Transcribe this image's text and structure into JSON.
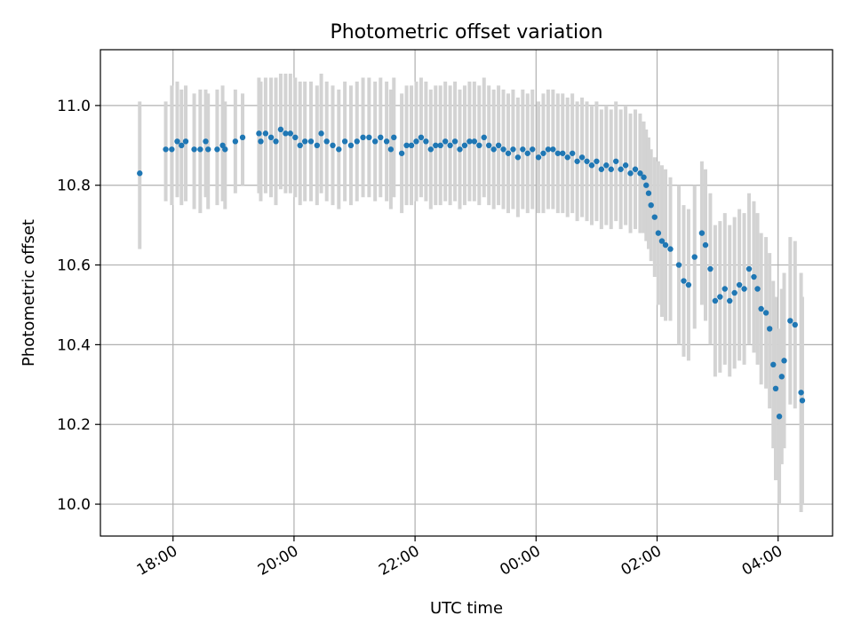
{
  "chart_data": {
    "type": "scatter",
    "title": "Photometric offset variation",
    "xlabel": "UTC time",
    "ylabel": "Photometric offset",
    "grid": true,
    "x_unit": "hours since 00:00 UTC (negative = previous day)",
    "xlim": [
      -7.2,
      4.9
    ],
    "ylim": [
      9.92,
      11.14
    ],
    "x_ticks": [
      {
        "value": -6,
        "label": "18:00"
      },
      {
        "value": -4,
        "label": "20:00"
      },
      {
        "value": -2,
        "label": "22:00"
      },
      {
        "value": 0,
        "label": "00:00"
      },
      {
        "value": 2,
        "label": "02:00"
      },
      {
        "value": 4,
        "label": "04:00"
      }
    ],
    "y_ticks": [
      {
        "value": 10.0,
        "label": "10.0"
      },
      {
        "value": 10.2,
        "label": "10.2"
      },
      {
        "value": 10.4,
        "label": "10.4"
      },
      {
        "value": 10.6,
        "label": "10.6"
      },
      {
        "value": 10.8,
        "label": "10.8"
      },
      {
        "value": 11.0,
        "label": "11.0"
      }
    ],
    "series": [
      {
        "name": "offset",
        "color": "#1f77b4",
        "errorbar_color": "#d3d3d3",
        "points": [
          [
            -6.55,
            10.83,
            10.64,
            11.01
          ],
          [
            -6.12,
            10.89,
            10.76,
            11.01
          ],
          [
            -6.02,
            10.89,
            10.75,
            11.05
          ],
          [
            -5.93,
            10.91,
            10.77,
            11.06
          ],
          [
            -5.86,
            10.9,
            10.75,
            11.04
          ],
          [
            -5.79,
            10.91,
            10.76,
            11.05
          ],
          [
            -5.65,
            10.89,
            10.74,
            11.03
          ],
          [
            -5.55,
            10.89,
            10.73,
            11.04
          ],
          [
            -5.46,
            10.91,
            10.77,
            11.04
          ],
          [
            -5.42,
            10.89,
            10.74,
            11.03
          ],
          [
            -5.27,
            10.89,
            10.75,
            11.04
          ],
          [
            -5.18,
            10.9,
            10.76,
            11.05
          ],
          [
            -5.14,
            10.89,
            10.74,
            11.01
          ],
          [
            -4.97,
            10.91,
            10.78,
            11.04
          ],
          [
            -4.85,
            10.92,
            10.8,
            11.03
          ],
          [
            -4.58,
            10.93,
            10.78,
            11.07
          ],
          [
            -4.55,
            10.91,
            10.76,
            11.06
          ],
          [
            -4.47,
            10.93,
            10.78,
            11.07
          ],
          [
            -4.38,
            10.92,
            10.77,
            11.07
          ],
          [
            -4.3,
            10.91,
            10.75,
            11.07
          ],
          [
            -4.22,
            10.94,
            10.79,
            11.08
          ],
          [
            -4.14,
            10.93,
            10.78,
            11.08
          ],
          [
            -4.06,
            10.93,
            10.78,
            11.08
          ],
          [
            -3.98,
            10.92,
            10.77,
            11.07
          ],
          [
            -3.9,
            10.9,
            10.75,
            11.06
          ],
          [
            -3.82,
            10.91,
            10.76,
            11.06
          ],
          [
            -3.72,
            10.91,
            10.76,
            11.06
          ],
          [
            -3.62,
            10.9,
            10.75,
            11.05
          ],
          [
            -3.55,
            10.93,
            10.78,
            11.08
          ],
          [
            -3.46,
            10.91,
            10.76,
            11.06
          ],
          [
            -3.36,
            10.9,
            10.75,
            11.05
          ],
          [
            -3.26,
            10.89,
            10.74,
            11.04
          ],
          [
            -3.16,
            10.91,
            10.76,
            11.06
          ],
          [
            -3.06,
            10.9,
            10.75,
            11.05
          ],
          [
            -2.96,
            10.91,
            10.76,
            11.06
          ],
          [
            -2.86,
            10.92,
            10.77,
            11.07
          ],
          [
            -2.76,
            10.92,
            10.77,
            11.07
          ],
          [
            -2.66,
            10.91,
            10.76,
            11.06
          ],
          [
            -2.57,
            10.92,
            10.77,
            11.07
          ],
          [
            -2.47,
            10.91,
            10.76,
            11.06
          ],
          [
            -2.4,
            10.89,
            10.74,
            11.04
          ],
          [
            -2.35,
            10.92,
            10.77,
            11.07
          ],
          [
            -2.22,
            10.88,
            10.73,
            11.03
          ],
          [
            -2.14,
            10.9,
            10.75,
            11.05
          ],
          [
            -2.06,
            10.9,
            10.75,
            11.05
          ],
          [
            -1.98,
            10.91,
            10.76,
            11.06
          ],
          [
            -1.9,
            10.92,
            10.77,
            11.07
          ],
          [
            -1.82,
            10.91,
            10.76,
            11.06
          ],
          [
            -1.74,
            10.89,
            10.74,
            11.04
          ],
          [
            -1.66,
            10.9,
            10.75,
            11.05
          ],
          [
            -1.58,
            10.9,
            10.75,
            11.05
          ],
          [
            -1.5,
            10.91,
            10.76,
            11.06
          ],
          [
            -1.42,
            10.9,
            10.75,
            11.05
          ],
          [
            -1.34,
            10.91,
            10.76,
            11.06
          ],
          [
            -1.26,
            10.89,
            10.74,
            11.04
          ],
          [
            -1.18,
            10.9,
            10.75,
            11.05
          ],
          [
            -1.1,
            10.91,
            10.76,
            11.06
          ],
          [
            -1.02,
            10.91,
            10.76,
            11.06
          ],
          [
            -0.94,
            10.9,
            10.75,
            11.05
          ],
          [
            -0.86,
            10.92,
            10.77,
            11.07
          ],
          [
            -0.78,
            10.9,
            10.75,
            11.05
          ],
          [
            -0.7,
            10.89,
            10.74,
            11.04
          ],
          [
            -0.62,
            10.9,
            10.75,
            11.05
          ],
          [
            -0.54,
            10.89,
            10.74,
            11.04
          ],
          [
            -0.46,
            10.88,
            10.73,
            11.03
          ],
          [
            -0.38,
            10.89,
            10.74,
            11.04
          ],
          [
            -0.3,
            10.87,
            10.72,
            11.02
          ],
          [
            -0.22,
            10.89,
            10.74,
            11.04
          ],
          [
            -0.14,
            10.88,
            10.73,
            11.03
          ],
          [
            -0.06,
            10.89,
            10.74,
            11.04
          ],
          [
            0.04,
            10.87,
            10.73,
            11.01
          ],
          [
            0.12,
            10.88,
            10.73,
            11.03
          ],
          [
            0.2,
            10.89,
            10.74,
            11.04
          ],
          [
            0.28,
            10.89,
            10.74,
            11.04
          ],
          [
            0.36,
            10.88,
            10.73,
            11.03
          ],
          [
            0.44,
            10.88,
            10.73,
            11.03
          ],
          [
            0.52,
            10.87,
            10.72,
            11.02
          ],
          [
            0.6,
            10.88,
            10.73,
            11.03
          ],
          [
            0.68,
            10.86,
            10.71,
            11.01
          ],
          [
            0.76,
            10.87,
            10.72,
            11.02
          ],
          [
            0.84,
            10.86,
            10.71,
            11.01
          ],
          [
            0.92,
            10.85,
            10.7,
            11.0
          ],
          [
            1.0,
            10.86,
            10.71,
            11.01
          ],
          [
            1.08,
            10.84,
            10.69,
            10.99
          ],
          [
            1.16,
            10.85,
            10.7,
            11.0
          ],
          [
            1.24,
            10.84,
            10.69,
            10.99
          ],
          [
            1.32,
            10.86,
            10.71,
            11.01
          ],
          [
            1.4,
            10.84,
            10.69,
            10.99
          ],
          [
            1.48,
            10.85,
            10.7,
            11.0
          ],
          [
            1.56,
            10.83,
            10.68,
            10.98
          ],
          [
            1.64,
            10.84,
            10.69,
            10.99
          ],
          [
            1.72,
            10.83,
            10.68,
            10.98
          ],
          [
            1.78,
            10.82,
            10.68,
            10.96
          ],
          [
            1.82,
            10.8,
            10.66,
            10.94
          ],
          [
            1.86,
            10.78,
            10.64,
            10.92
          ],
          [
            1.9,
            10.75,
            10.61,
            10.89
          ],
          [
            1.96,
            10.72,
            10.57,
            10.87
          ],
          [
            2.02,
            10.68,
            10.5,
            10.86
          ],
          [
            2.08,
            10.66,
            10.47,
            10.85
          ],
          [
            2.14,
            10.65,
            10.46,
            10.84
          ],
          [
            2.22,
            10.64,
            10.46,
            10.82
          ],
          [
            2.36,
            10.6,
            10.4,
            10.8
          ],
          [
            2.44,
            10.56,
            10.37,
            10.75
          ],
          [
            2.52,
            10.55,
            10.36,
            10.74
          ],
          [
            2.62,
            10.62,
            10.44,
            10.8
          ],
          [
            2.74,
            10.68,
            10.5,
            10.86
          ],
          [
            2.8,
            10.65,
            10.46,
            10.84
          ],
          [
            2.88,
            10.59,
            10.4,
            10.78
          ],
          [
            2.96,
            10.51,
            10.32,
            10.7
          ],
          [
            3.04,
            10.52,
            10.33,
            10.71
          ],
          [
            3.12,
            10.54,
            10.35,
            10.73
          ],
          [
            3.2,
            10.51,
            10.32,
            10.7
          ],
          [
            3.28,
            10.53,
            10.34,
            10.72
          ],
          [
            3.36,
            10.55,
            10.36,
            10.74
          ],
          [
            3.44,
            10.54,
            10.35,
            10.73
          ],
          [
            3.52,
            10.59,
            10.4,
            10.78
          ],
          [
            3.6,
            10.57,
            10.38,
            10.76
          ],
          [
            3.66,
            10.54,
            10.35,
            10.73
          ],
          [
            3.72,
            10.49,
            10.3,
            10.68
          ],
          [
            3.8,
            10.48,
            10.29,
            10.67
          ],
          [
            3.86,
            10.44,
            10.24,
            10.63
          ],
          [
            3.92,
            10.35,
            10.14,
            10.56
          ],
          [
            3.96,
            10.29,
            10.06,
            10.52
          ],
          [
            4.02,
            10.22,
            10.0,
            10.44
          ],
          [
            4.06,
            10.32,
            10.1,
            10.54
          ],
          [
            4.1,
            10.36,
            10.14,
            10.58
          ],
          [
            4.2,
            10.46,
            10.25,
            10.67
          ],
          [
            4.28,
            10.45,
            10.24,
            10.66
          ],
          [
            4.38,
            10.28,
            9.98,
            10.58
          ],
          [
            4.4,
            10.26,
            10.0,
            10.52
          ]
        ]
      }
    ]
  }
}
